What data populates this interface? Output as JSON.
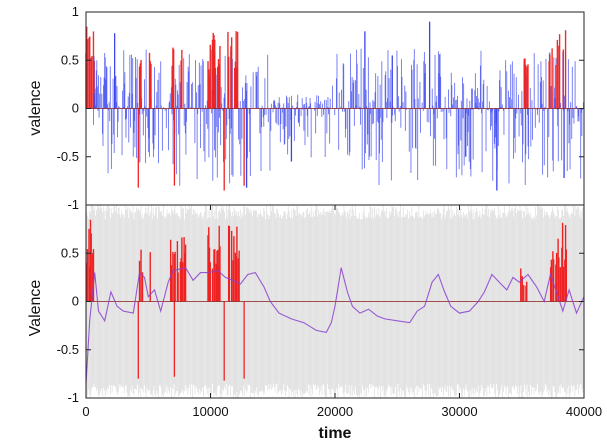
{
  "chart_data": [
    {
      "type": "line",
      "panel": "top",
      "xlabel": "",
      "ylabel": "valence",
      "xlim": [
        0,
        40000
      ],
      "ylim": [
        -1,
        1
      ],
      "y_ticks": [
        "1",
        "0.5",
        "0",
        "-0.5",
        "-1"
      ],
      "x_ticks": [],
      "zero_line": true,
      "colors": {
        "blue": "#3a45ee",
        "red": "#ee2222",
        "zero": "#8a1a1a"
      },
      "clusters": [
        {
          "start": 0,
          "end": 700,
          "color": "red",
          "min": 0.45,
          "max": 0.85
        },
        {
          "start": 600,
          "end": 14800,
          "color": "blue",
          "min": -0.85,
          "max": 0.62
        },
        {
          "start": 4300,
          "end": 4500,
          "color": "red",
          "min": 0.4,
          "max": 0.55
        },
        {
          "start": 5100,
          "end": 5300,
          "color": "red",
          "min": 0.4,
          "max": 0.62
        },
        {
          "start": 6800,
          "end": 8000,
          "color": "red",
          "min": 0.4,
          "max": 0.75
        },
        {
          "start": 9800,
          "end": 10800,
          "color": "red",
          "min": 0.4,
          "max": 0.8
        },
        {
          "start": 11400,
          "end": 12200,
          "color": "red",
          "min": 0.4,
          "max": 0.82
        },
        {
          "start": 14800,
          "end": 19800,
          "color": "blue",
          "min": -0.55,
          "max": 0.15
        },
        {
          "start": 19800,
          "end": 40000,
          "color": "blue",
          "min": -0.8,
          "max": 0.62
        },
        {
          "start": 35200,
          "end": 35500,
          "color": "red",
          "min": 0.4,
          "max": 0.55
        },
        {
          "start": 37200,
          "end": 38600,
          "color": "red",
          "min": 0.4,
          "max": 0.85
        }
      ],
      "spikes": [
        {
          "x": 2300,
          "y": 0.78,
          "color": "blue"
        },
        {
          "x": 4200,
          "y": -0.82,
          "color": "red"
        },
        {
          "x": 7100,
          "y": -0.8,
          "color": "red"
        },
        {
          "x": 11100,
          "y": -0.85,
          "color": "red"
        },
        {
          "x": 12700,
          "y": -0.8,
          "color": "red"
        },
        {
          "x": 12900,
          "y": -0.82,
          "color": "blue"
        },
        {
          "x": 16500,
          "y": -0.55,
          "color": "blue"
        },
        {
          "x": 22400,
          "y": 0.8,
          "color": "blue"
        },
        {
          "x": 24600,
          "y": 0.55,
          "color": "blue"
        },
        {
          "x": 27600,
          "y": 0.9,
          "color": "blue"
        },
        {
          "x": 30500,
          "y": -0.5,
          "color": "blue"
        },
        {
          "x": 33000,
          "y": -0.85,
          "color": "blue"
        },
        {
          "x": 38400,
          "y": -0.72,
          "color": "blue"
        }
      ]
    },
    {
      "type": "line",
      "panel": "bottom",
      "xlabel": "time",
      "ylabel": "Valence",
      "xlim": [
        0,
        40000
      ],
      "ylim": [
        -1,
        1
      ],
      "y_ticks": [
        "0.5",
        "0",
        "-0.5",
        "-1"
      ],
      "x_ticks": [
        "0",
        "10000",
        "20000",
        "30000",
        "40000"
      ],
      "x_tick_values": [
        0,
        10000,
        20000,
        30000,
        40000
      ],
      "zero_line": true,
      "colors": {
        "background": "#cfcfcf",
        "purple": "#8a3fd0",
        "red": "#ee2222",
        "zero": "#8a1a1a"
      },
      "red_bars": [
        {
          "start": 0,
          "end": 700,
          "min": 0,
          "max": 0.85
        },
        {
          "start": 4300,
          "end": 4600,
          "min": 0,
          "max": 0.6
        },
        {
          "start": 5100,
          "end": 5300,
          "min": 0,
          "max": 0.58
        },
        {
          "start": 6800,
          "end": 8000,
          "min": 0,
          "max": 0.72
        },
        {
          "start": 9800,
          "end": 10800,
          "min": 0,
          "max": 0.82
        },
        {
          "start": 11400,
          "end": 12300,
          "min": 0,
          "max": 0.8
        },
        {
          "start": 34800,
          "end": 35500,
          "min": 0,
          "max": 0.4
        },
        {
          "start": 37200,
          "end": 38600,
          "min": 0,
          "max": 0.84
        }
      ],
      "red_spikes": [
        {
          "x": 4200,
          "y": -0.8
        },
        {
          "x": 7100,
          "y": -0.78
        },
        {
          "x": 11100,
          "y": -0.82
        },
        {
          "x": 12700,
          "y": -0.8
        }
      ],
      "purple_trace": [
        [
          0,
          -0.85
        ],
        [
          300,
          -0.2
        ],
        [
          700,
          0.3
        ],
        [
          1000,
          -0.1
        ],
        [
          1500,
          -0.2
        ],
        [
          2000,
          0.1
        ],
        [
          2500,
          -0.05
        ],
        [
          3000,
          -0.1
        ],
        [
          3800,
          -0.12
        ],
        [
          4300,
          0.3
        ],
        [
          4700,
          0.25
        ],
        [
          5000,
          0.05
        ],
        [
          5500,
          0.12
        ],
        [
          6000,
          -0.1
        ],
        [
          6600,
          0.2
        ],
        [
          7000,
          0.32
        ],
        [
          8000,
          0.35
        ],
        [
          8600,
          0.22
        ],
        [
          9200,
          0.3
        ],
        [
          9800,
          0.3
        ],
        [
          10600,
          0.32
        ],
        [
          11200,
          0.25
        ],
        [
          11800,
          0.22
        ],
        [
          12400,
          0.18
        ],
        [
          13000,
          0.28
        ],
        [
          13600,
          0.3
        ],
        [
          14300,
          0.15
        ],
        [
          14800,
          0.0
        ],
        [
          15500,
          -0.12
        ],
        [
          16500,
          -0.18
        ],
        [
          17500,
          -0.22
        ],
        [
          18500,
          -0.3
        ],
        [
          19300,
          -0.32
        ],
        [
          19700,
          -0.22
        ],
        [
          20000,
          -0.05
        ],
        [
          20500,
          0.35
        ],
        [
          21000,
          0.1
        ],
        [
          21400,
          -0.05
        ],
        [
          22000,
          -0.12
        ],
        [
          22700,
          -0.08
        ],
        [
          23400,
          -0.15
        ],
        [
          24000,
          -0.18
        ],
        [
          25000,
          -0.2
        ],
        [
          26000,
          -0.22
        ],
        [
          26600,
          -0.1
        ],
        [
          27200,
          -0.05
        ],
        [
          27800,
          0.2
        ],
        [
          28300,
          0.28
        ],
        [
          28800,
          0.1
        ],
        [
          29300,
          -0.05
        ],
        [
          30000,
          -0.12
        ],
        [
          30800,
          -0.1
        ],
        [
          31500,
          0.0
        ],
        [
          32000,
          0.1
        ],
        [
          32600,
          0.28
        ],
        [
          33200,
          0.2
        ],
        [
          33800,
          0.12
        ],
        [
          34300,
          0.25
        ],
        [
          34800,
          0.2
        ],
        [
          35500,
          0.28
        ],
        [
          36200,
          0.15
        ],
        [
          36800,
          0.0
        ],
        [
          37300,
          0.28
        ],
        [
          37800,
          0.1
        ],
        [
          38300,
          -0.1
        ],
        [
          38800,
          0.12
        ],
        [
          39400,
          -0.12
        ],
        [
          40000,
          0.05
        ]
      ]
    }
  ]
}
